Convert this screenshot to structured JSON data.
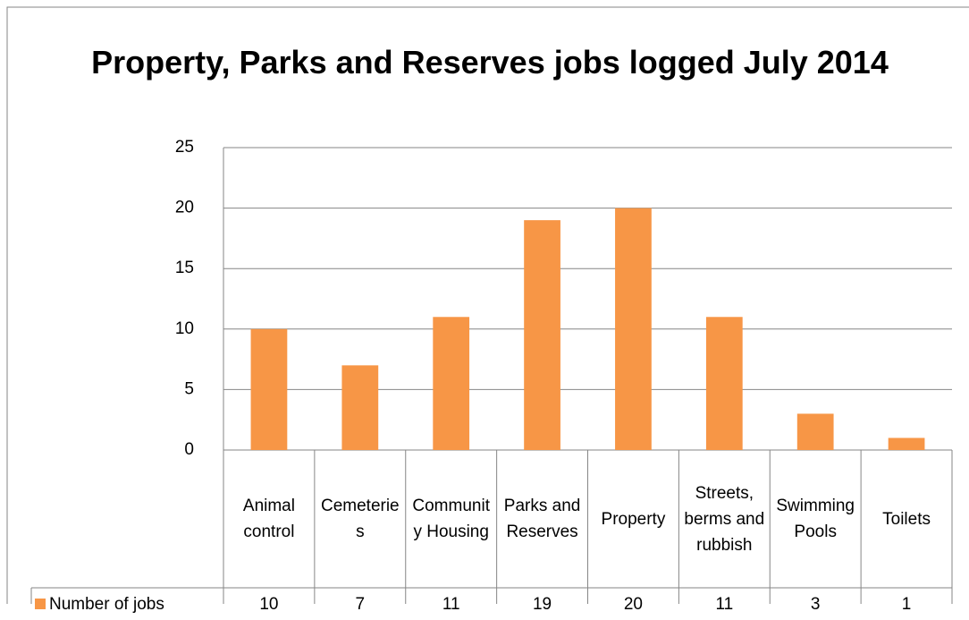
{
  "chart_data": {
    "type": "bar",
    "title": "Property, Parks and Reserves jobs logged July 2014",
    "categories": [
      "Animal control",
      "Cemeteries",
      "Community Housing",
      "Parks and Reserves",
      "Property",
      "Streets, berms and rubbish",
      "Swimming Pools",
      "Toilets"
    ],
    "series": [
      {
        "name": "Number of jobs",
        "color": "#f79646",
        "values": [
          10,
          7,
          11,
          19,
          20,
          11,
          3,
          1
        ]
      }
    ],
    "ylim": [
      0,
      25
    ],
    "yticks": [
      0,
      5,
      10,
      15,
      20,
      25
    ],
    "grid": true,
    "legend": "data-table"
  }
}
